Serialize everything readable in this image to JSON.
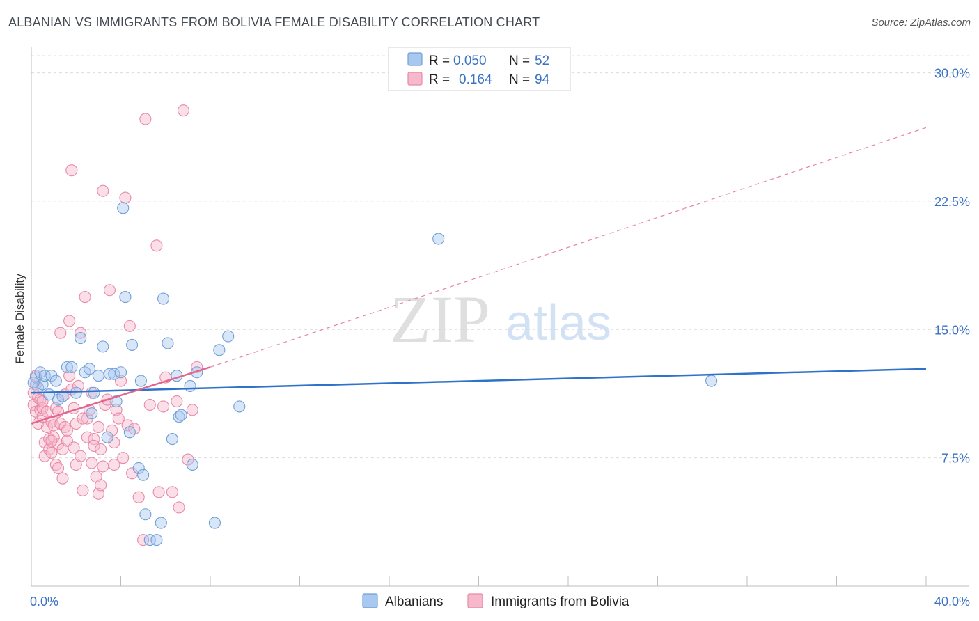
{
  "title": "ALBANIAN VS IMMIGRANTS FROM BOLIVIA FEMALE DISABILITY CORRELATION CHART",
  "source": "Source: ZipAtlas.com",
  "watermark": {
    "zip": "ZIP",
    "atlas": "atlas"
  },
  "chart_data": {
    "type": "scatter",
    "ylabel": "Female Disability",
    "xlabel": "",
    "xlim": [
      0,
      40
    ],
    "ylim": [
      0,
      31
    ],
    "x_tick_labels": [
      {
        "value": 0,
        "label": "0.0%"
      },
      {
        "value": 40,
        "label": "40.0%"
      }
    ],
    "y_tick_labels": [
      {
        "value": 7.5,
        "label": "7.5%"
      },
      {
        "value": 15.0,
        "label": "15.0%"
      },
      {
        "value": 22.5,
        "label": "22.5%"
      },
      {
        "value": 30.0,
        "label": "30.0%"
      }
    ],
    "legend": {
      "placement": "top-center",
      "rows": [
        {
          "r_label": "R =",
          "r_value": "0.050",
          "n_label": "N =",
          "n_value": "52"
        },
        {
          "r_label": "R =",
          "r_value": "0.164",
          "n_label": "N =",
          "n_value": "94"
        }
      ]
    },
    "bottom_legend": [
      "Albanians",
      "Immigrants from Bolivia"
    ],
    "colors": {
      "albanians_fill": "#a9c8ef",
      "albanians_stroke": "#6f9fd8",
      "albanians_line": "#2f72c9",
      "bolivia_fill": "#f6b8cb",
      "bolivia_stroke": "#e88aa7",
      "bolivia_line": "#e3658d",
      "tick_label": "#3a72c4",
      "grid": "#dcdcdc"
    },
    "series": [
      {
        "name": "Albanians",
        "trend": {
          "x0": 0,
          "y0": 11.3,
          "x1": 40,
          "y1": 12.7,
          "style": "solid"
        },
        "points": [
          [
            0.2,
            12.2
          ],
          [
            0.3,
            11.6
          ],
          [
            0.4,
            12.5
          ],
          [
            0.5,
            11.8
          ],
          [
            0.6,
            12.3
          ],
          [
            0.8,
            11.2
          ],
          [
            0.9,
            12.3
          ],
          [
            1.1,
            12.0
          ],
          [
            1.2,
            10.9
          ],
          [
            1.4,
            11.1
          ],
          [
            1.6,
            12.8
          ],
          [
            1.8,
            12.8
          ],
          [
            2.0,
            11.3
          ],
          [
            2.2,
            14.5
          ],
          [
            2.4,
            12.5
          ],
          [
            2.6,
            12.7
          ],
          [
            2.7,
            10.1
          ],
          [
            2.8,
            11.3
          ],
          [
            3.0,
            12.3
          ],
          [
            3.2,
            14.0
          ],
          [
            3.4,
            8.7
          ],
          [
            3.5,
            12.4
          ],
          [
            3.7,
            12.4
          ],
          [
            3.8,
            10.8
          ],
          [
            4.0,
            12.5
          ],
          [
            4.1,
            22.1
          ],
          [
            4.2,
            16.9
          ],
          [
            4.4,
            9.0
          ],
          [
            4.5,
            14.1
          ],
          [
            4.8,
            6.9
          ],
          [
            4.9,
            12.0
          ],
          [
            5.0,
            6.5
          ],
          [
            5.1,
            4.2
          ],
          [
            5.3,
            2.7
          ],
          [
            5.6,
            2.7
          ],
          [
            5.8,
            3.7
          ],
          [
            5.9,
            16.8
          ],
          [
            6.1,
            14.2
          ],
          [
            6.3,
            8.6
          ],
          [
            6.5,
            12.3
          ],
          [
            6.6,
            9.9
          ],
          [
            6.7,
            10.0
          ],
          [
            7.1,
            11.7
          ],
          [
            7.2,
            7.1
          ],
          [
            7.4,
            12.5
          ],
          [
            8.2,
            3.7
          ],
          [
            8.4,
            13.8
          ],
          [
            8.8,
            14.6
          ],
          [
            9.3,
            10.5
          ],
          [
            18.2,
            20.3
          ],
          [
            30.4,
            12.0
          ],
          [
            0.1,
            11.9
          ]
        ]
      },
      {
        "name": "Immigrants from Bolivia",
        "trend": {
          "x0": 0,
          "y0": 9.5,
          "x1": 8,
          "y1": 12.8,
          "style": "solid"
        },
        "trend_extension": {
          "x0": 8,
          "y0": 12.8,
          "x1": 40,
          "y1": 26.8,
          "style": "dashed"
        },
        "points": [
          [
            0.1,
            11.3
          ],
          [
            0.1,
            10.6
          ],
          [
            0.2,
            11.8
          ],
          [
            0.2,
            10.2
          ],
          [
            0.3,
            11.0
          ],
          [
            0.3,
            9.5
          ],
          [
            0.4,
            10.3
          ],
          [
            0.4,
            10.9
          ],
          [
            0.5,
            9.9
          ],
          [
            0.5,
            10.4
          ],
          [
            0.6,
            8.4
          ],
          [
            0.6,
            7.6
          ],
          [
            0.7,
            10.2
          ],
          [
            0.7,
            9.3
          ],
          [
            0.8,
            8.0
          ],
          [
            0.8,
            8.6
          ],
          [
            0.9,
            9.6
          ],
          [
            0.9,
            7.8
          ],
          [
            1.0,
            8.7
          ],
          [
            1.0,
            9.4
          ],
          [
            1.1,
            7.1
          ],
          [
            1.1,
            10.4
          ],
          [
            1.2,
            6.9
          ],
          [
            1.2,
            8.3
          ],
          [
            1.3,
            9.5
          ],
          [
            1.3,
            14.8
          ],
          [
            1.4,
            6.3
          ],
          [
            1.4,
            8.0
          ],
          [
            1.5,
            9.3
          ],
          [
            1.5,
            11.2
          ],
          [
            1.6,
            8.5
          ],
          [
            1.6,
            9.1
          ],
          [
            1.7,
            12.3
          ],
          [
            1.7,
            15.5
          ],
          [
            1.8,
            24.3
          ],
          [
            1.8,
            11.5
          ],
          [
            1.9,
            10.4
          ],
          [
            1.9,
            8.1
          ],
          [
            2.0,
            7.1
          ],
          [
            2.0,
            9.5
          ],
          [
            2.1,
            11.7
          ],
          [
            2.2,
            14.8
          ],
          [
            2.2,
            7.6
          ],
          [
            2.3,
            5.6
          ],
          [
            2.4,
            16.9
          ],
          [
            2.5,
            9.8
          ],
          [
            2.5,
            8.7
          ],
          [
            2.6,
            10.3
          ],
          [
            2.7,
            7.2
          ],
          [
            2.7,
            11.3
          ],
          [
            2.8,
            8.6
          ],
          [
            2.8,
            8.2
          ],
          [
            2.9,
            6.4
          ],
          [
            3.0,
            5.4
          ],
          [
            3.0,
            9.3
          ],
          [
            3.1,
            8.0
          ],
          [
            3.1,
            5.9
          ],
          [
            3.2,
            23.1
          ],
          [
            3.2,
            7.0
          ],
          [
            3.3,
            10.6
          ],
          [
            3.4,
            10.9
          ],
          [
            3.5,
            17.3
          ],
          [
            3.6,
            9.1
          ],
          [
            3.7,
            8.4
          ],
          [
            3.8,
            10.3
          ],
          [
            3.9,
            9.8
          ],
          [
            4.0,
            12.0
          ],
          [
            4.1,
            7.5
          ],
          [
            4.2,
            22.7
          ],
          [
            4.3,
            9.4
          ],
          [
            4.4,
            15.2
          ],
          [
            4.5,
            6.6
          ],
          [
            4.6,
            9.2
          ],
          [
            4.8,
            5.2
          ],
          [
            5.0,
            2.7
          ],
          [
            5.1,
            27.3
          ],
          [
            5.3,
            10.6
          ],
          [
            5.6,
            19.9
          ],
          [
            5.7,
            5.5
          ],
          [
            5.9,
            10.5
          ],
          [
            6.0,
            12.2
          ],
          [
            6.3,
            5.5
          ],
          [
            6.5,
            10.8
          ],
          [
            6.6,
            4.6
          ],
          [
            6.8,
            27.8
          ],
          [
            7.0,
            7.4
          ],
          [
            7.2,
            10.3
          ],
          [
            7.4,
            12.8
          ],
          [
            0.2,
            12.3
          ],
          [
            0.5,
            10.8
          ],
          [
            0.9,
            8.5
          ],
          [
            1.2,
            10.2
          ],
          [
            2.3,
            9.8
          ],
          [
            3.7,
            7.1
          ]
        ]
      }
    ]
  }
}
